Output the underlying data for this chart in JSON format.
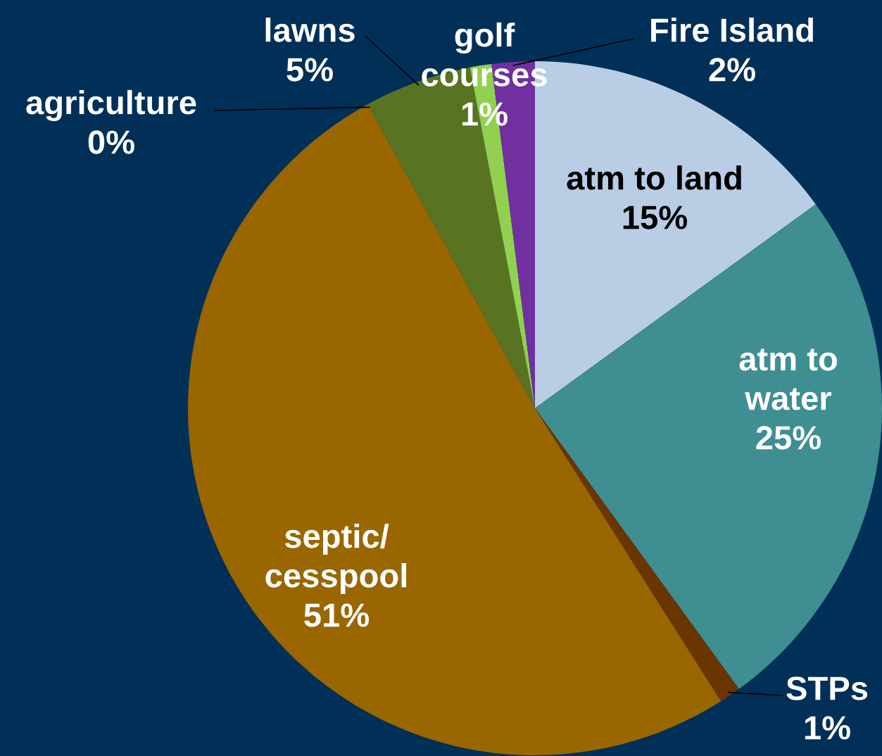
{
  "chart_data": {
    "type": "pie",
    "categories": [
      "atm to land",
      "atm to\nwater",
      "STPs",
      "septic/\ncesspool",
      "agriculture",
      "lawns",
      "golf\ncourses",
      "Fire Island"
    ],
    "values": [
      15,
      25,
      1,
      51,
      0,
      5,
      1,
      2
    ],
    "value_labels": [
      "15%",
      "25%",
      "1%",
      "51%",
      "0%",
      "5%",
      "1%",
      "2%"
    ],
    "colors": [
      "#b9cde5",
      "#3f8e92",
      "#6b3500",
      "#996600",
      "#ffff00",
      "#587422",
      "#92d050",
      "#7030a0"
    ]
  }
}
